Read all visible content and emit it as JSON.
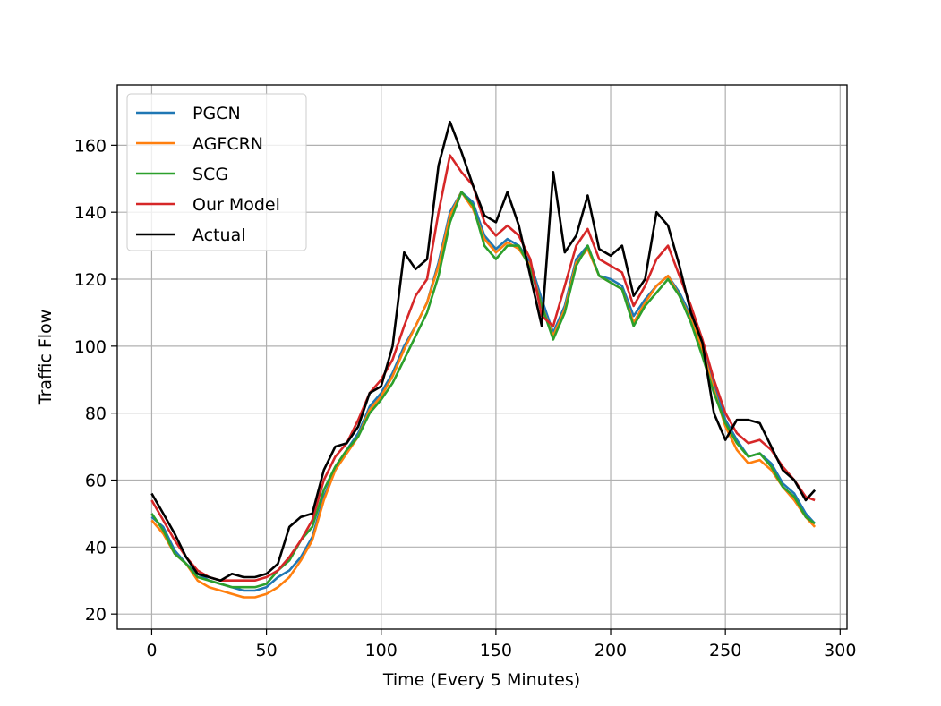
{
  "chart_data": {
    "type": "line",
    "title": "",
    "xlabel": "Time (Every 5 Minutes)",
    "ylabel": "Traffic Flow",
    "xlim": [
      -15,
      303
    ],
    "ylim": [
      15.5,
      178
    ],
    "xticks": [
      0,
      50,
      100,
      150,
      200,
      250,
      300
    ],
    "yticks": [
      20,
      40,
      60,
      80,
      100,
      120,
      140,
      160
    ],
    "grid": true,
    "legend_position": "upper-left",
    "series": [
      {
        "name": "PGCN",
        "color": "#1f77b4",
        "x": [
          0,
          5,
          10,
          15,
          20,
          25,
          30,
          35,
          40,
          45,
          50,
          55,
          60,
          65,
          70,
          75,
          80,
          85,
          90,
          95,
          100,
          105,
          110,
          115,
          120,
          125,
          130,
          135,
          140,
          145,
          150,
          155,
          160,
          165,
          170,
          175,
          180,
          185,
          190,
          195,
          200,
          205,
          210,
          215,
          220,
          225,
          230,
          235,
          240,
          245,
          250,
          255,
          260,
          265,
          270,
          275,
          280,
          285,
          289
        ],
        "y": [
          49,
          46,
          39,
          35,
          32,
          30,
          29,
          28,
          27,
          27,
          28,
          31,
          33,
          37,
          43,
          55,
          63,
          69,
          74,
          82,
          86,
          92,
          100,
          106,
          113,
          125,
          140,
          146,
          143,
          133,
          129,
          132,
          130,
          125,
          114,
          104,
          112,
          126,
          130,
          121,
          120,
          118,
          109,
          114,
          118,
          121,
          116,
          109,
          101,
          88,
          78,
          72,
          67,
          68,
          65,
          59,
          56,
          50,
          47
        ]
      },
      {
        "name": "AGFCRN",
        "color": "#ff7f0e",
        "x": [
          0,
          5,
          10,
          15,
          20,
          25,
          30,
          35,
          40,
          45,
          50,
          55,
          60,
          65,
          70,
          75,
          80,
          85,
          90,
          95,
          100,
          105,
          110,
          115,
          120,
          125,
          130,
          135,
          140,
          145,
          150,
          155,
          160,
          165,
          170,
          175,
          180,
          185,
          190,
          195,
          200,
          205,
          210,
          215,
          220,
          225,
          230,
          235,
          240,
          245,
          250,
          255,
          260,
          265,
          270,
          275,
          280,
          285,
          289
        ],
        "y": [
          48,
          44,
          38,
          35,
          30,
          28,
          27,
          26,
          25,
          25,
          26,
          28,
          31,
          36,
          42,
          54,
          63,
          68,
          73,
          81,
          85,
          91,
          99,
          106,
          113,
          124,
          139,
          146,
          141,
          132,
          128,
          131,
          129,
          124,
          112,
          103,
          111,
          125,
          129,
          121,
          119,
          117,
          107,
          113,
          118,
          121,
          115,
          108,
          99,
          87,
          76,
          69,
          65,
          66,
          63,
          58,
          54,
          49,
          46
        ]
      },
      {
        "name": "SCG",
        "color": "#2ca02c",
        "x": [
          0,
          5,
          10,
          15,
          20,
          25,
          30,
          35,
          40,
          45,
          50,
          55,
          60,
          65,
          70,
          75,
          80,
          85,
          90,
          95,
          100,
          105,
          110,
          115,
          120,
          125,
          130,
          135,
          140,
          145,
          150,
          155,
          160,
          165,
          170,
          175,
          180,
          185,
          190,
          195,
          200,
          205,
          210,
          215,
          220,
          225,
          230,
          235,
          240,
          245,
          250,
          255,
          260,
          265,
          270,
          275,
          280,
          285,
          289
        ],
        "y": [
          50,
          45,
          38,
          35,
          31,
          30,
          29,
          28,
          28,
          28,
          29,
          33,
          36,
          42,
          46,
          57,
          64,
          69,
          73,
          80,
          84,
          89,
          96,
          103,
          110,
          121,
          137,
          146,
          142,
          130,
          126,
          130,
          130,
          123,
          112,
          102,
          110,
          124,
          130,
          121,
          119,
          117,
          106,
          112,
          116,
          120,
          115,
          107,
          97,
          86,
          77,
          71,
          67,
          68,
          64,
          58,
          55,
          49,
          47
        ]
      },
      {
        "name": "Our Model",
        "color": "#d62728",
        "x": [
          0,
          5,
          10,
          15,
          20,
          25,
          30,
          35,
          40,
          45,
          50,
          55,
          60,
          65,
          70,
          75,
          80,
          85,
          90,
          95,
          100,
          105,
          110,
          115,
          120,
          125,
          130,
          135,
          140,
          145,
          150,
          155,
          160,
          165,
          170,
          175,
          180,
          185,
          190,
          195,
          200,
          205,
          210,
          215,
          220,
          225,
          230,
          235,
          240,
          245,
          250,
          255,
          260,
          265,
          270,
          275,
          280,
          285,
          289
        ],
        "y": [
          54,
          48,
          42,
          37,
          33,
          31,
          30,
          30,
          30,
          30,
          31,
          33,
          37,
          42,
          48,
          60,
          67,
          71,
          78,
          86,
          90,
          96,
          106,
          115,
          120,
          140,
          157,
          152,
          148,
          137,
          133,
          136,
          133,
          126,
          109,
          106,
          118,
          130,
          135,
          126,
          124,
          122,
          112,
          118,
          126,
          130,
          121,
          112,
          102,
          90,
          80,
          74,
          71,
          72,
          69,
          64,
          60,
          55,
          54
        ]
      },
      {
        "name": "Actual",
        "color": "#000000",
        "x": [
          0,
          5,
          10,
          15,
          20,
          25,
          30,
          35,
          40,
          45,
          50,
          55,
          60,
          65,
          70,
          75,
          80,
          85,
          90,
          95,
          100,
          105,
          110,
          115,
          120,
          125,
          130,
          135,
          140,
          145,
          150,
          155,
          160,
          165,
          170,
          175,
          180,
          185,
          190,
          195,
          200,
          205,
          210,
          215,
          220,
          225,
          230,
          235,
          240,
          245,
          250,
          255,
          260,
          265,
          270,
          275,
          280,
          285,
          289
        ],
        "y": [
          56,
          50,
          44,
          37,
          32,
          31,
          30,
          32,
          31,
          31,
          32,
          35,
          46,
          49,
          50,
          63,
          70,
          71,
          76,
          86,
          88,
          100,
          128,
          123,
          126,
          154,
          167,
          158,
          148,
          139,
          137,
          146,
          136,
          121,
          106,
          152,
          128,
          133,
          145,
          129,
          127,
          130,
          115,
          120,
          140,
          136,
          124,
          110,
          101,
          80,
          72,
          78,
          78,
          77,
          70,
          63,
          60,
          54,
          57
        ]
      }
    ]
  }
}
